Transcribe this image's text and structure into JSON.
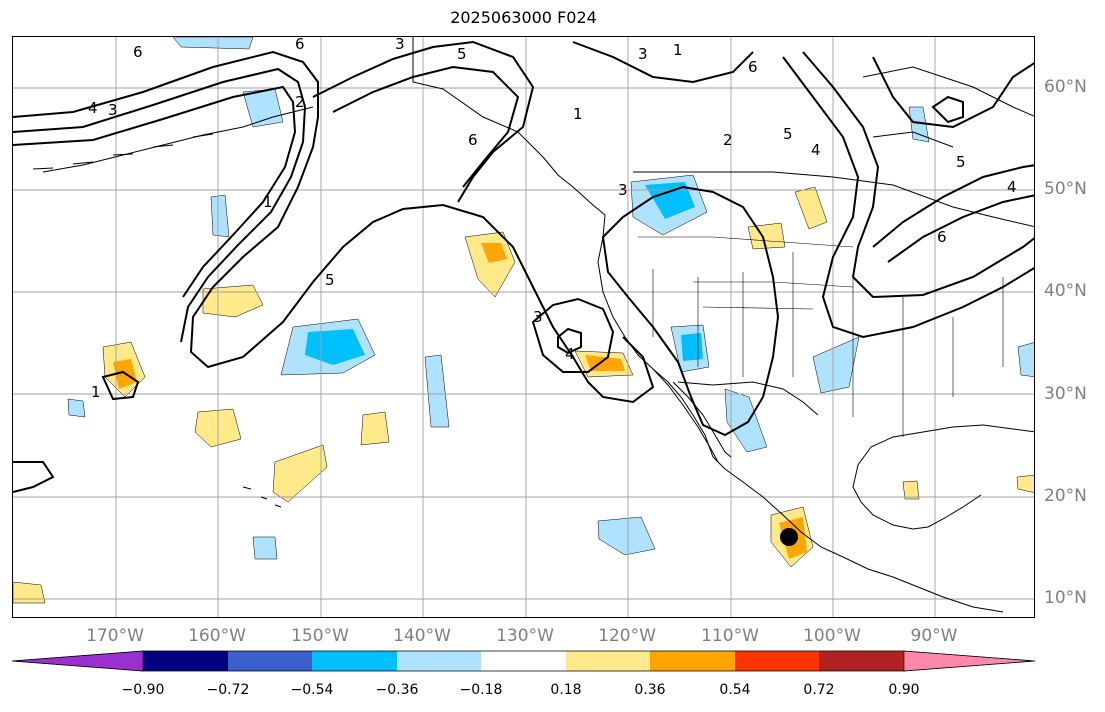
{
  "title": "2025063000 F024",
  "lat_labels": [
    "60°N",
    "50°N",
    "40°N",
    "30°N",
    "20°N",
    "10°N"
  ],
  "lon_labels": [
    "170°W",
    "160°W",
    "150°W",
    "140°W",
    "130°W",
    "120°W",
    "110°W",
    "100°W",
    "90°W"
  ],
  "contour_labels": [
    "6",
    "3",
    "5",
    "1",
    "3",
    "4",
    "6",
    "2",
    "6",
    "5",
    "4",
    "5",
    "4",
    "6",
    "1",
    "3",
    "1",
    "2",
    "3",
    "5",
    "1",
    "6",
    "3",
    "4"
  ],
  "colorbar": {
    "ticks": [
      "−0.90",
      "−0.72",
      "−0.54",
      "−0.36",
      "−0.18",
      "0.18",
      "0.36",
      "0.54",
      "0.72",
      "0.90"
    ],
    "colors": [
      "#9b30d0",
      "#000080",
      "#3a5fcd",
      "#00bfff",
      "#aee2ff",
      "#ffffff",
      "#ffe98a",
      "#ffa500",
      "#ff3300",
      "#b22222",
      "#ff88aa"
    ]
  },
  "colors": {
    "grid": "#a0a0a0",
    "coast": "#000000",
    "pos_light": "#ffe98a",
    "pos_mid": "#ffa500",
    "neg_light": "#aee2ff",
    "neg_mid": "#00bfff",
    "marker": "#000000"
  }
}
